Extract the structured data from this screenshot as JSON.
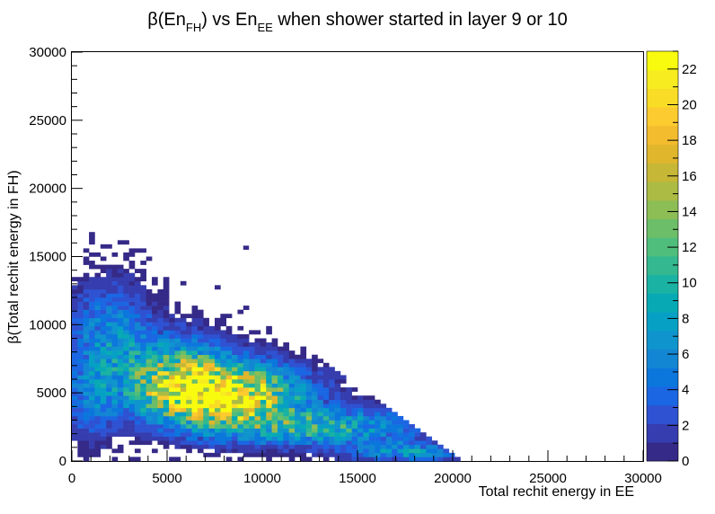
{
  "chart_data": {
    "type": "heatmap",
    "title": "β(En_FH) vs En_EE when  shower started in layer 9 or 10",
    "title_parts": {
      "prefix": "β(En",
      "sub1": "FH",
      "mid": ") vs En",
      "sub2": "EE",
      "suffix": " when  shower started in layer 9 or 10"
    },
    "xlabel": "Total rechit energy in EE",
    "ylabel": "β(Total rechit energy in FH)",
    "xlim": [
      0,
      30000
    ],
    "ylim": [
      0,
      30000
    ],
    "x_ticks": [
      "0",
      "5000",
      "10000",
      "15000",
      "20000",
      "25000",
      "30000"
    ],
    "y_ticks": [
      "0",
      "5000",
      "10000",
      "15000",
      "20000",
      "25000",
      "30000"
    ],
    "bin_width": 300,
    "colorbar": {
      "min": 0,
      "max": 23,
      "ticks": [
        "0",
        "2",
        "4",
        "6",
        "8",
        "10",
        "12",
        "14",
        "16",
        "18",
        "20",
        "22"
      ],
      "palette": [
        "#352a87",
        "#363dae",
        "#2e52d2",
        "#1b66e3",
        "#0b77dc",
        "#1386d3",
        "#0f94cd",
        "#06a0c5",
        "#07aab4",
        "#1ab2a3",
        "#33b890",
        "#4fbd7b",
        "#6cbe68",
        "#8dbd55",
        "#acbb44",
        "#c7b737",
        "#e0b62c",
        "#f3bc2e",
        "#fccb2f",
        "#f9dc26",
        "#f6ec1f",
        "#f9fb0e"
      ]
    },
    "clusters": [
      {
        "x": 8000,
        "y": 4800,
        "sx": 2600,
        "sy": 1500,
        "peak": 22
      },
      {
        "x": 5500,
        "y": 6500,
        "sx": 1800,
        "sy": 1800,
        "peak": 10
      },
      {
        "x": 13000,
        "y": 2500,
        "sx": 3500,
        "sy": 900,
        "peak": 9
      },
      {
        "x": 2000,
        "y": 9000,
        "sx": 1500,
        "sy": 2500,
        "peak": 6
      },
      {
        "x": 17500,
        "y": 700,
        "sx": 2000,
        "sy": 450,
        "peak": 7
      },
      {
        "x": 1000,
        "y": 4500,
        "sx": 1000,
        "sy": 2000,
        "peak": 4
      }
    ],
    "outlier_points": [
      {
        "x": 9000,
        "y": 15500,
        "count": 1
      }
    ]
  }
}
